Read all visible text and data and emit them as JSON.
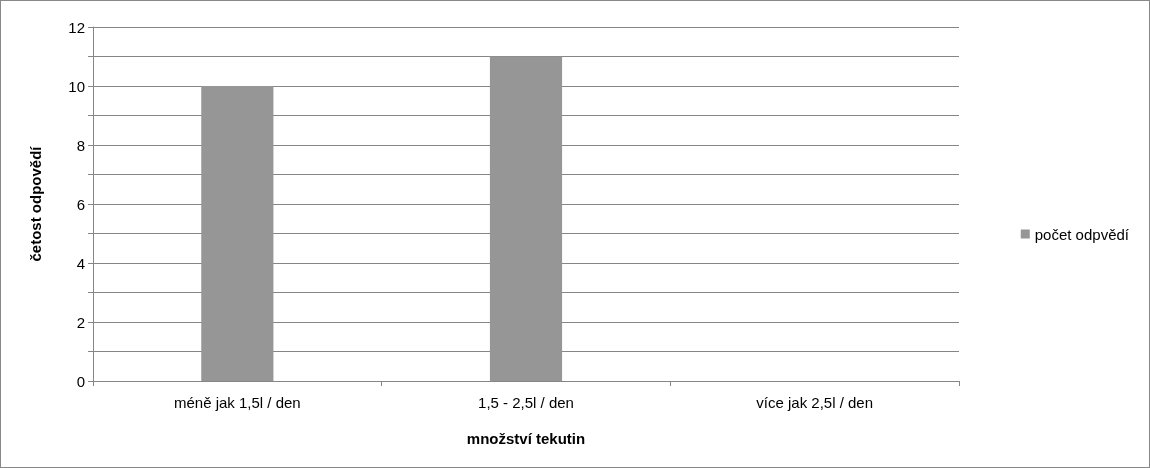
{
  "chart_data": {
    "type": "bar",
    "xlabel": "množství tekutin",
    "ylabel": "četost odpovědí",
    "categories": [
      "méně jak 1,5l / den",
      "1,5 - 2,5l / den",
      "více jak 2,5l / den"
    ],
    "series": [
      {
        "name": "počet odpvědí",
        "color": "#969696",
        "values": [
          10,
          11,
          0
        ]
      }
    ],
    "ylim": [
      0,
      12
    ],
    "yticks": [
      0,
      {
        "value": 1,
        "label": null
      },
      2,
      {
        "value": 3,
        "label": null
      },
      4,
      {
        "value": 5,
        "label": null
      },
      6,
      {
        "value": 7,
        "label": null
      },
      8,
      {
        "value": 9,
        "label": null
      },
      10,
      {
        "value": 11,
        "label": null
      },
      12
    ],
    "grid": "y",
    "legend": "right"
  }
}
